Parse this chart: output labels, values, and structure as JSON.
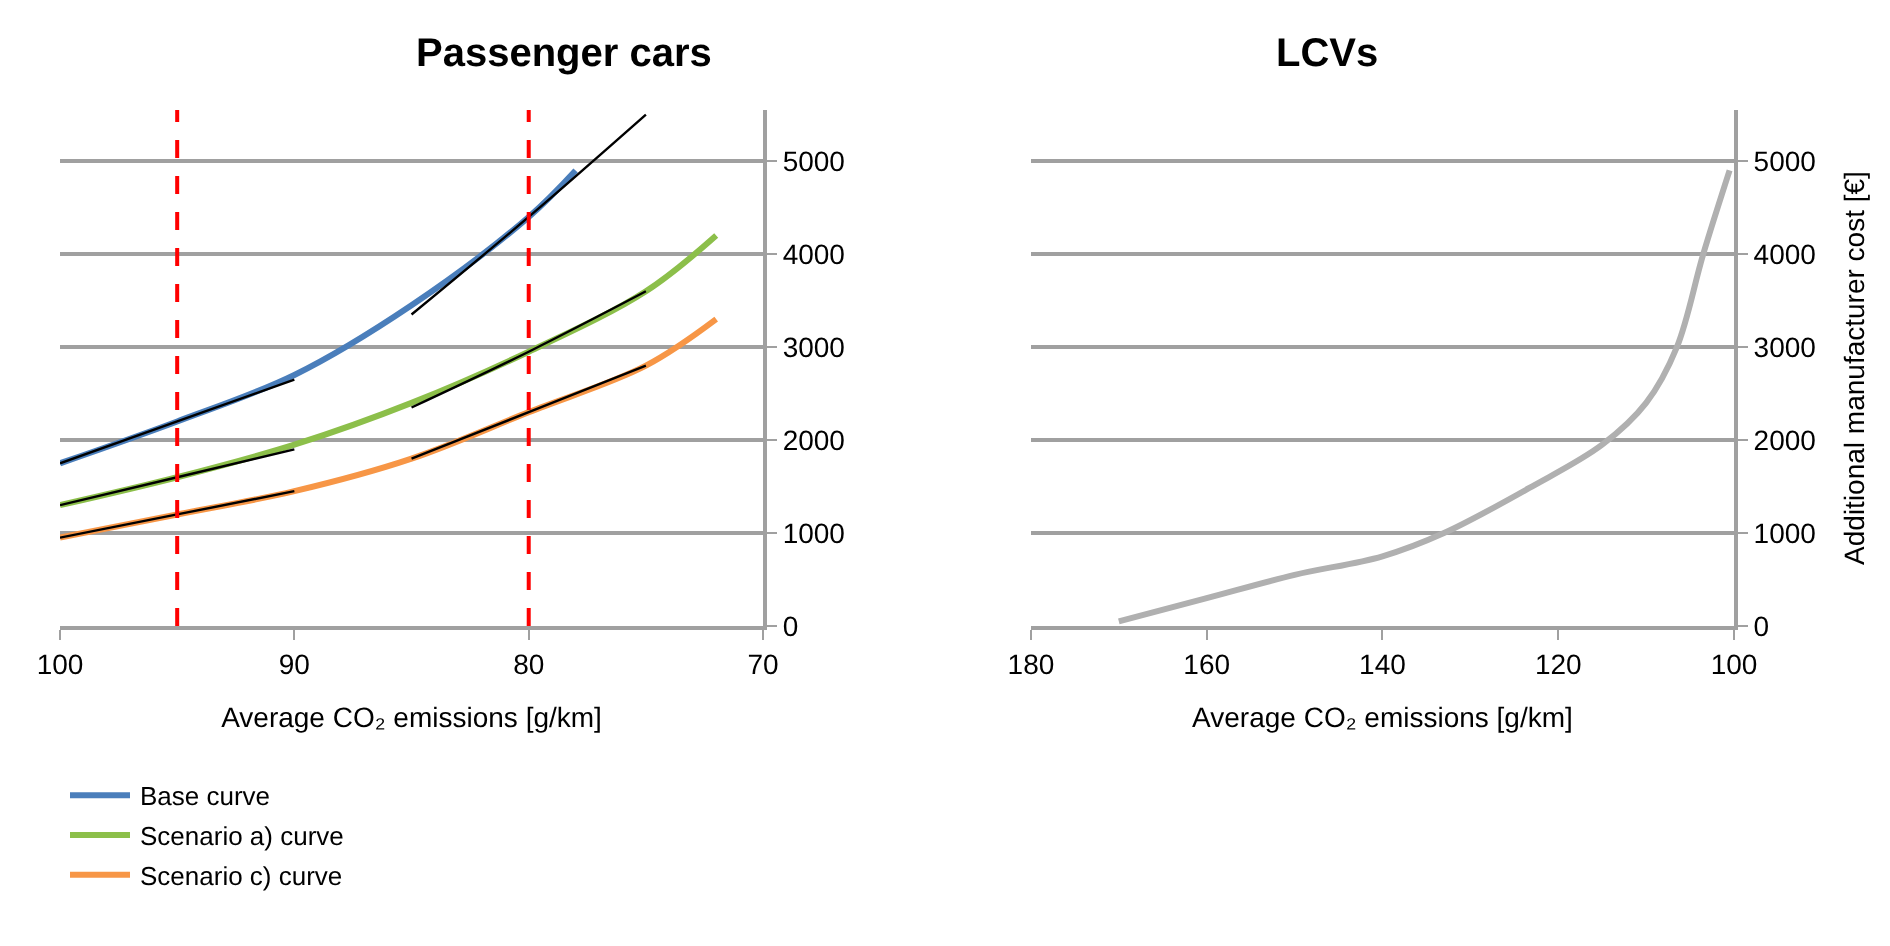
{
  "chart_data": [
    {
      "type": "line",
      "title": "Passenger cars",
      "xlabel": "Average CO₂ emissions [g/km]",
      "xlim": [
        100,
        70
      ],
      "xticks": [
        100,
        90,
        80,
        70
      ],
      "ylim": [
        0,
        5550
      ],
      "yticks": [
        0,
        1000,
        2000,
        3000,
        4000,
        5000
      ],
      "grid": "y",
      "legend": "bottom left",
      "line_style": "solid",
      "marker": "none",
      "series": [
        {
          "name": "Base curve",
          "color": "#4a7ebb",
          "x": [
            100,
            95,
            90,
            85,
            80,
            78
          ],
          "values": [
            1750,
            2200,
            2700,
            3450,
            4400,
            4900
          ]
        },
        {
          "name": "Scenario a) curve",
          "color": "#8cbf4a",
          "x": [
            100,
            95,
            90,
            85,
            80,
            75,
            72
          ],
          "values": [
            1300,
            1600,
            1950,
            2400,
            2950,
            3600,
            4200
          ]
        },
        {
          "name": "Scenario c) curve",
          "color": "#f79646",
          "x": [
            100,
            95,
            90,
            85,
            80,
            75,
            72
          ],
          "values": [
            950,
            1200,
            1450,
            1800,
            2300,
            2800,
            3300
          ]
        },
        {
          "color": "#000000",
          "x": [
            100,
            95,
            90
          ],
          "values": [
            1750,
            2200,
            2650
          ]
        },
        {
          "color": "#000000",
          "x": [
            85,
            80,
            75
          ],
          "values": [
            3350,
            4400,
            5500
          ]
        },
        {
          "color": "#000000",
          "x": [
            100,
            95,
            90
          ],
          "values": [
            1300,
            1600,
            1900
          ]
        },
        {
          "color": "#000000",
          "x": [
            85,
            80,
            75
          ],
          "values": [
            2350,
            2950,
            3600
          ]
        },
        {
          "color": "#000000",
          "x": [
            100,
            95,
            90
          ],
          "values": [
            950,
            1200,
            1450
          ]
        },
        {
          "color": "#000000",
          "x": [
            85,
            80,
            75
          ],
          "values": [
            1800,
            2300,
            2800
          ]
        }
      ],
      "ref_lines": [
        {
          "axis": "x",
          "value": 95,
          "color": "#ff0000",
          "line_style": "dashed"
        },
        {
          "axis": "x",
          "value": 80,
          "color": "#ff0000",
          "line_style": "dashed"
        }
      ]
    },
    {
      "type": "line",
      "title": "LCVs",
      "xlabel": "Average CO₂ emissions [g/km]",
      "ylabel": "Additional manufacturer cost [€]",
      "xlim": [
        180,
        100
      ],
      "xticks": [
        180,
        160,
        140,
        120,
        100
      ],
      "ylim": [
        0,
        5550
      ],
      "yticks": [
        0,
        1000,
        2000,
        3000,
        4000,
        5000
      ],
      "grid": "y",
      "line_style": "solid",
      "marker": "none",
      "series": [
        {
          "color": "#b0b0b0",
          "x": [
            170,
            160,
            150,
            140,
            133,
            123,
            115,
            110,
            106.5,
            103.5,
            100.5
          ],
          "values": [
            50,
            300,
            550,
            750,
            1000,
            1500,
            1950,
            2400,
            3000,
            4000,
            4900
          ]
        }
      ]
    }
  ]
}
